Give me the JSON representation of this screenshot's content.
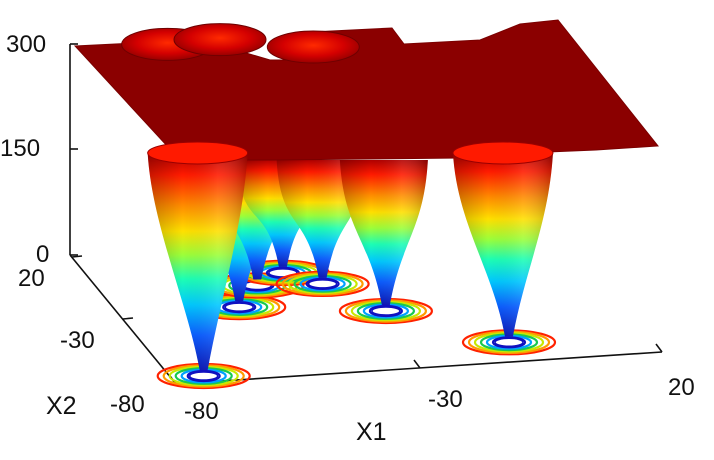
{
  "chart_data": {
    "type": "surface3d",
    "title": "",
    "xlabel": "X1",
    "ylabel": "X2",
    "zlabel": "",
    "x_ticks": [
      "-80",
      "-30",
      "20"
    ],
    "y_ticks": [
      "20",
      "-30",
      "-80"
    ],
    "z_ticks": [
      "0",
      "150",
      "300"
    ],
    "xlim": [
      -80,
      20
    ],
    "ylim": [
      -80,
      20
    ],
    "zlim": [
      0,
      300
    ],
    "plateau_z": 300,
    "colormap": "jet",
    "plateau_color": "#8b0000",
    "contours_on_floor": true,
    "wells": [
      {
        "x1": -73,
        "x2": -74,
        "z_min": 0
      },
      {
        "x1": -55,
        "x2": -25,
        "z_min": 0
      },
      {
        "x1": -48,
        "x2": -10,
        "z_min": 0
      },
      {
        "x1": -41,
        "x2": -2,
        "z_min": 0
      },
      {
        "x1": -35,
        "x2": -12,
        "z_min": 0
      },
      {
        "x1": -27,
        "x2": -35,
        "z_min": 0
      },
      {
        "x1": -8,
        "x2": -64,
        "z_min": 0
      },
      {
        "x1": -61,
        "x2": 15,
        "z_min": 150
      },
      {
        "x1": -50,
        "x2": 16,
        "z_min": 160
      },
      {
        "x1": -33,
        "x2": 6,
        "z_min": 180
      }
    ]
  }
}
